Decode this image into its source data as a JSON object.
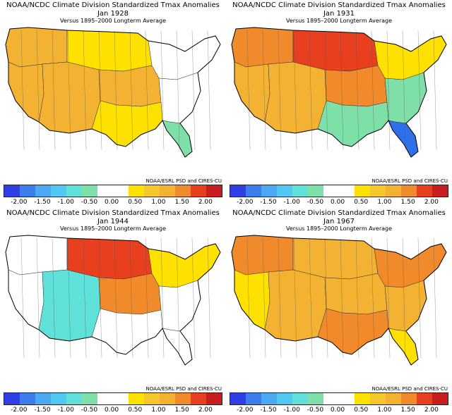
{
  "panels": [
    {
      "title": "NOAA/NCDC Climate Division Standardized Tmax Anomalies",
      "date": "Jan 1928",
      "subtitle": "Versus 1895–2000 Longterm Average",
      "credit": "NOAA/ESRL PSD and CIRES-CU",
      "regions": {
        "northwest": "#f4b233",
        "northcentral": "#ffe100",
        "northeast": "#ffffff",
        "west": "#f4b233",
        "southwest": "#f4b233",
        "central": "#f4b233",
        "southeast": "#ffffff",
        "southcentral": "#ffe100",
        "florida": "#7ee0a8"
      }
    },
    {
      "title": "NOAA/NCDC Climate Division Standardized Tmax Anomalies",
      "date": "Jan 1931",
      "subtitle": "Versus 1895–2000 Longterm Average",
      "credit": "NOAA/ESRL PSD and CIRES-CU",
      "regions": {
        "northwest": "#f08a2a",
        "northcentral": "#e8401f",
        "northeast": "#ffe100",
        "west": "#f4b233",
        "southwest": "#f4b233",
        "central": "#f08a2a",
        "southeast": "#7ee0a8",
        "southcentral": "#7ee0a8",
        "florida": "#2f6fe8"
      }
    },
    {
      "title": "NOAA/NCDC Climate Division Standardized Tmax Anomalies",
      "date": "Jan 1944",
      "subtitle": "Versus 1895–2000 Longterm Average",
      "credit": "NOAA/ESRL PSD and CIRES-CU",
      "regions": {
        "northwest": "#ffffff",
        "northcentral": "#e8401f",
        "northeast": "#ffe100",
        "west": "#ffffff",
        "southwest": "#5fe0d8",
        "central": "#f08a2a",
        "southeast": "#ffffff",
        "southcentral": "#ffffff",
        "florida": "#ffffff"
      }
    },
    {
      "title": "NOAA/NCDC Climate Division Standardized Tmax Anomalies",
      "date": "Jan 1967",
      "subtitle": "Versus 1895–2000 Longterm Average",
      "credit": "NOAA/ESRL PSD and CIRES-CU",
      "regions": {
        "northwest": "#f08a2a",
        "northcentral": "#f4b233",
        "northeast": "#f08a2a",
        "west": "#ffe100",
        "southwest": "#f4b233",
        "central": "#f4b233",
        "southeast": "#f4b233",
        "southcentral": "#f08a2a",
        "florida": "#ffe100"
      }
    }
  ],
  "colorbar": {
    "colors": [
      "#2f3fe8",
      "#3c7ef0",
      "#4aa8f4",
      "#50c8f0",
      "#5fe0d8",
      "#7ee0a8",
      "#ffffff",
      "#ffffff",
      "#ffe100",
      "#f4c82a",
      "#f4b233",
      "#f08a2a",
      "#e8401f",
      "#c81e1e"
    ],
    "labels": [
      "-2.00",
      "-1.50",
      "-1.00",
      "-0.50",
      "0.00",
      "0.50",
      "1.00",
      "1.50",
      "2.00"
    ]
  }
}
